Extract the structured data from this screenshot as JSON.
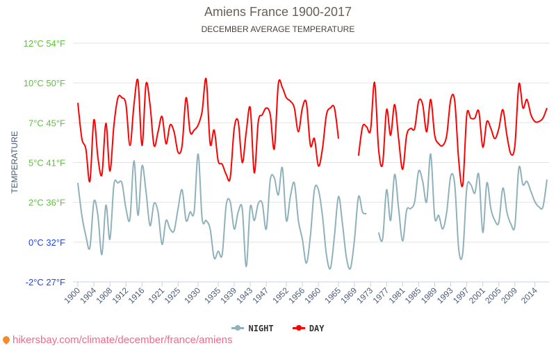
{
  "chart_data": {
    "type": "line",
    "title": "Amiens France 1900-2017",
    "subtitle": "DECEMBER AVERAGE TEMPERATURE",
    "ylabel": "TEMPERATURE",
    "xlabel": "",
    "ylim": [
      -2,
      12
    ],
    "xlim": [
      1900,
      2017
    ],
    "grid": true,
    "legend_position": "bottom",
    "y_ticks": [
      {
        "value": 12,
        "label": "12°C 54°F",
        "color": "#5cc23c"
      },
      {
        "value": 9.67,
        "label": "10°C 50°F",
        "color": "#5cc23c"
      },
      {
        "value": 7.33,
        "label": "7°C 45°F",
        "color": "#5cc23c"
      },
      {
        "value": 5,
        "label": "5°C 41°F",
        "color": "#5cc23c"
      },
      {
        "value": 2.67,
        "label": "2°C 36°F",
        "color": "#5cc23c"
      },
      {
        "value": 0.33,
        "label": "0°C 32°F",
        "color": "#1f44f0"
      },
      {
        "value": -2,
        "label": "-2°C 27°F",
        "color": "#1f44f0"
      }
    ],
    "x_ticks": [
      "1900",
      "1904",
      "1908",
      "1912",
      "1916",
      "1921",
      "1925",
      "1930",
      "1935",
      "1939",
      "1943",
      "1947",
      "1952",
      "1956",
      "1960",
      "1965",
      "1969",
      "1973",
      "1977",
      "1981",
      "1985",
      "1989",
      "1993",
      "1997",
      "2001",
      "2005",
      "2009",
      "2014"
    ],
    "series": [
      {
        "name": "NIGHT",
        "color": "#8fb1bb",
        "values": [
          3.8,
          1.9,
          0.7,
          0.0,
          2.7,
          1.9,
          -0.4,
          2.5,
          0.5,
          3.7,
          3.8,
          3.8,
          2.3,
          1.7,
          5.1,
          1.9,
          4.8,
          3.3,
          1.3,
          2.6,
          2.1,
          0.2,
          1.6,
          1.1,
          1.0,
          2.3,
          3.4,
          1.6,
          2.1,
          2.1,
          5.5,
          1.7,
          1.6,
          1.1,
          -0.6,
          -0.2,
          -0.4,
          2.5,
          2.7,
          1.1,
          2.1,
          2.3,
          -1.1,
          2.4,
          1.6,
          2.6,
          2.6,
          1.1,
          4.0,
          4.1,
          3.1,
          4.7,
          1.6,
          3.0,
          3.8,
          1.6,
          0.5,
          -0.9,
          0.7,
          3.4,
          3.4,
          1.9,
          -0.4,
          -1.2,
          0.7,
          3.0,
          1.4,
          -0.6,
          -1.2,
          0.5,
          3.0,
          2.1,
          2.0,
          null,
          null,
          0.9,
          0.5,
          3.4,
          1.6,
          4.3,
          2.3,
          0.4,
          2.2,
          2.3,
          2.7,
          4.5,
          3.9,
          2.7,
          5.5,
          1.8,
          1.9,
          1.1,
          2.1,
          4.2,
          3.7,
          -0.1,
          -0.3,
          3.5,
          3.7,
          3.2,
          4.3,
          0.9,
          3.8,
          2.3,
          1.6,
          1.5,
          3.5,
          2.1,
          1.4,
          1.3,
          4.7,
          3.7,
          3.9,
          3.3,
          2.7,
          2.4,
          2.4,
          4.0
        ]
      },
      {
        "name": "DAY",
        "color": "#ff0000",
        "values": [
          8.5,
          6.4,
          5.8,
          3.9,
          7.5,
          5.3,
          4.3,
          7.3,
          4.5,
          7.2,
          8.8,
          8.8,
          8.4,
          6.0,
          8.4,
          9.8,
          6.0,
          9.6,
          8.4,
          6.0,
          6.8,
          7.7,
          6.1,
          7.2,
          6.8,
          5.6,
          6.0,
          8.8,
          6.8,
          6.9,
          7.2,
          8.0,
          9.9,
          6.1,
          6.9,
          5.1,
          4.9,
          4.3,
          4.1,
          7.0,
          7.4,
          5.0,
          6.8,
          8.2,
          4.4,
          7.4,
          7.8,
          8.2,
          7.8,
          5.8,
          9.6,
          9.4,
          8.8,
          8.6,
          8.2,
          6.8,
          8.2,
          8.5,
          6.0,
          6.4,
          4.8,
          5.8,
          7.8,
          8.2,
          8.2,
          6.4,
          null,
          null,
          null,
          null,
          5.4,
          7.1,
          7.1,
          6.9,
          9.7,
          5.8,
          4.9,
          8.1,
          6.6,
          8.4,
          6.4,
          4.6,
          6.6,
          7.0,
          7.0,
          8.6,
          8.4,
          6.8,
          8.7,
          6.6,
          6.1,
          6.0,
          6.6,
          8.7,
          8.6,
          5.1,
          3.7,
          7.8,
          7.6,
          7.6,
          8.0,
          5.9,
          7.4,
          7.0,
          6.4,
          7.0,
          8.1,
          6.6,
          5.5,
          6.0,
          9.6,
          8.2,
          8.7,
          7.8,
          7.4,
          7.4,
          7.6,
          8.2
        ]
      }
    ]
  },
  "footer": {
    "url_text": "hikersbay.com/climate/december/france/amiens"
  }
}
